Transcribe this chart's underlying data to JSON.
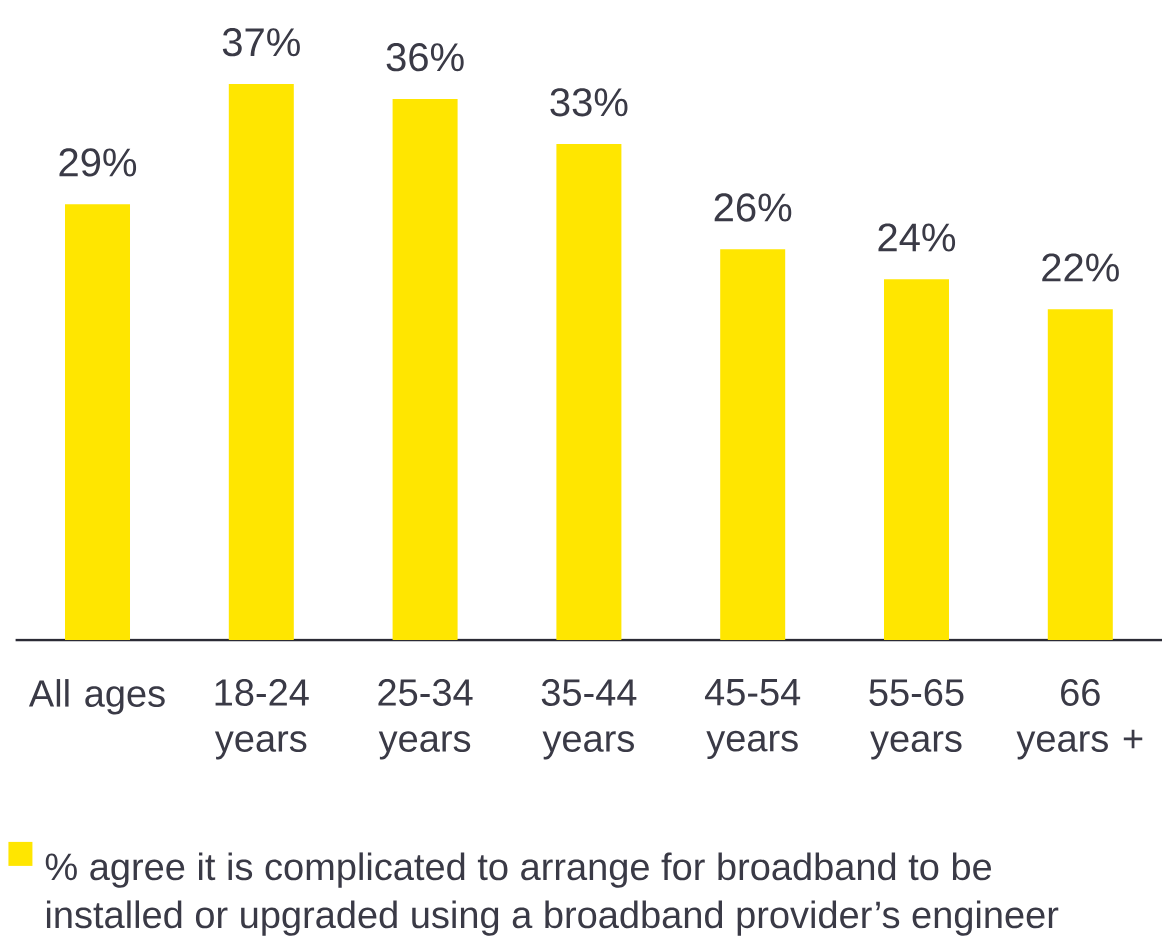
{
  "chart_data": {
    "type": "bar",
    "categories": [
      "All ages",
      "18-24 years",
      "25-34 years",
      "35-44 years",
      "45-54 years",
      "55-65 years",
      "66 years +"
    ],
    "series": [
      {
        "name": "% agree it is complicated to arrange for broadband to be installed or upgraded using a broadband provider’s engineer",
        "color": "#ffe600",
        "values": [
          29,
          37,
          36,
          33,
          26,
          24,
          22
        ],
        "value_labels": [
          "29%",
          "37%",
          "36%",
          "33%",
          "26%",
          "24%",
          "22%"
        ]
      }
    ],
    "legend": "bottom"
  }
}
